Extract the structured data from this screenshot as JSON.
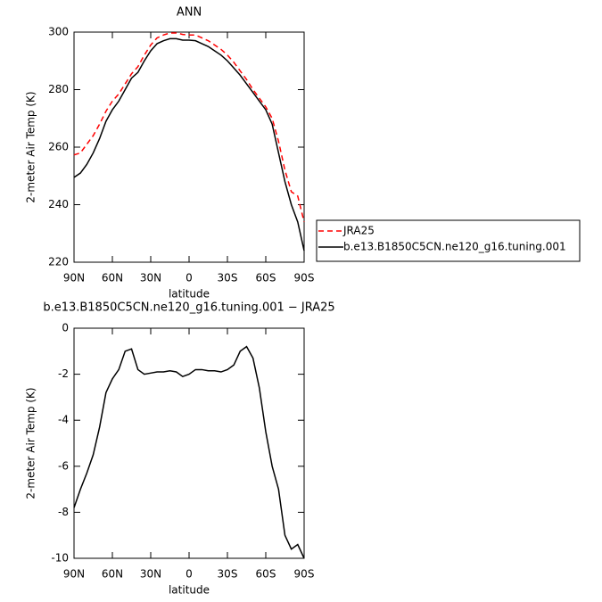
{
  "chart_data": [
    {
      "type": "line",
      "title": "ANN",
      "xlabel": "latitude",
      "ylabel": "2-meter Air Temp (K)",
      "x": [
        90,
        85,
        80,
        75,
        70,
        65,
        60,
        55,
        50,
        45,
        40,
        35,
        30,
        25,
        20,
        15,
        10,
        5,
        0,
        -5,
        -10,
        -15,
        -20,
        -25,
        -30,
        -35,
        -40,
        -45,
        -50,
        -55,
        -60,
        -65,
        -70,
        -75,
        -80,
        -85,
        -90
      ],
      "series": [
        {
          "name": "JRA25",
          "color": "#ff0000",
          "style": "dashed",
          "values": [
            257.3,
            258,
            261,
            264,
            268,
            272.5,
            276,
            278.5,
            282,
            285.5,
            288,
            292,
            295.5,
            298,
            299,
            299.7,
            299.7,
            299.2,
            299,
            299,
            298,
            297,
            295.5,
            294,
            292,
            289.5,
            286.5,
            283.5,
            280,
            277,
            274,
            270,
            262,
            252,
            244.5,
            243,
            234
          ]
        },
        {
          "name": "b.e13.B1850C5CN.ne120_g16.tuning.001",
          "color": "#000000",
          "style": "solid",
          "values": [
            249.5,
            251,
            254,
            258,
            263,
            269,
            273,
            276,
            280,
            284,
            286,
            290,
            293.5,
            296,
            297,
            297.7,
            297.7,
            297.2,
            297.2,
            297,
            296,
            295,
            293.5,
            292,
            290,
            287.5,
            285,
            282,
            279,
            276,
            273,
            268,
            258,
            248,
            240,
            234,
            224
          ]
        }
      ],
      "xlim": [
        90,
        -90
      ],
      "xticks": [
        {
          "value": 90,
          "label": "90N"
        },
        {
          "value": 60,
          "label": "60N"
        },
        {
          "value": 30,
          "label": "30N"
        },
        0,
        {
          "value": -30,
          "label": "30S"
        },
        {
          "value": -60,
          "label": "60S"
        },
        {
          "value": -90,
          "label": "90S"
        }
      ],
      "ylim": [
        220,
        300
      ],
      "yticks": [
        220,
        240,
        260,
        280,
        300
      ],
      "legend": "outside-right"
    },
    {
      "type": "line",
      "title": "b.e13.B1850C5CN.ne120_g16.tuning.001 − JRA25",
      "xlabel": "latitude",
      "ylabel": "2-meter Air Temp (K)",
      "x": [
        90,
        85,
        80,
        75,
        70,
        65,
        60,
        55,
        50,
        45,
        40,
        35,
        30,
        25,
        20,
        15,
        10,
        5,
        0,
        -5,
        -10,
        -15,
        -20,
        -25,
        -30,
        -35,
        -40,
        -45,
        -50,
        -55,
        -60,
        -65,
        -70,
        -75,
        -80,
        -85,
        -90
      ],
      "series": [
        {
          "color": "#000000",
          "style": "solid",
          "values": [
            -7.8,
            -7.0,
            -6.3,
            -5.5,
            -4.3,
            -2.8,
            -2.2,
            -1.8,
            -1.0,
            -0.9,
            -1.8,
            -2.0,
            -1.95,
            -1.9,
            -1.9,
            -1.85,
            -1.9,
            -2.1,
            -2.0,
            -1.8,
            -1.8,
            -1.85,
            -1.85,
            -1.9,
            -1.8,
            -1.6,
            -1.0,
            -0.8,
            -1.3,
            -2.6,
            -4.5,
            -6.0,
            -7.0,
            -9.0,
            -9.6,
            -9.4,
            -10.0
          ]
        }
      ],
      "xlim": [
        90,
        -90
      ],
      "xticks": [
        {
          "value": 90,
          "label": "90N"
        },
        {
          "value": 60,
          "label": "60N"
        },
        {
          "value": 30,
          "label": "30N"
        },
        0,
        {
          "value": -30,
          "label": "30S"
        },
        {
          "value": -60,
          "label": "60S"
        },
        {
          "value": -90,
          "label": "90S"
        }
      ],
      "ylim": [
        -10,
        0
      ],
      "yticks": [
        -10,
        -8,
        -6,
        -4,
        -2,
        0
      ]
    }
  ]
}
